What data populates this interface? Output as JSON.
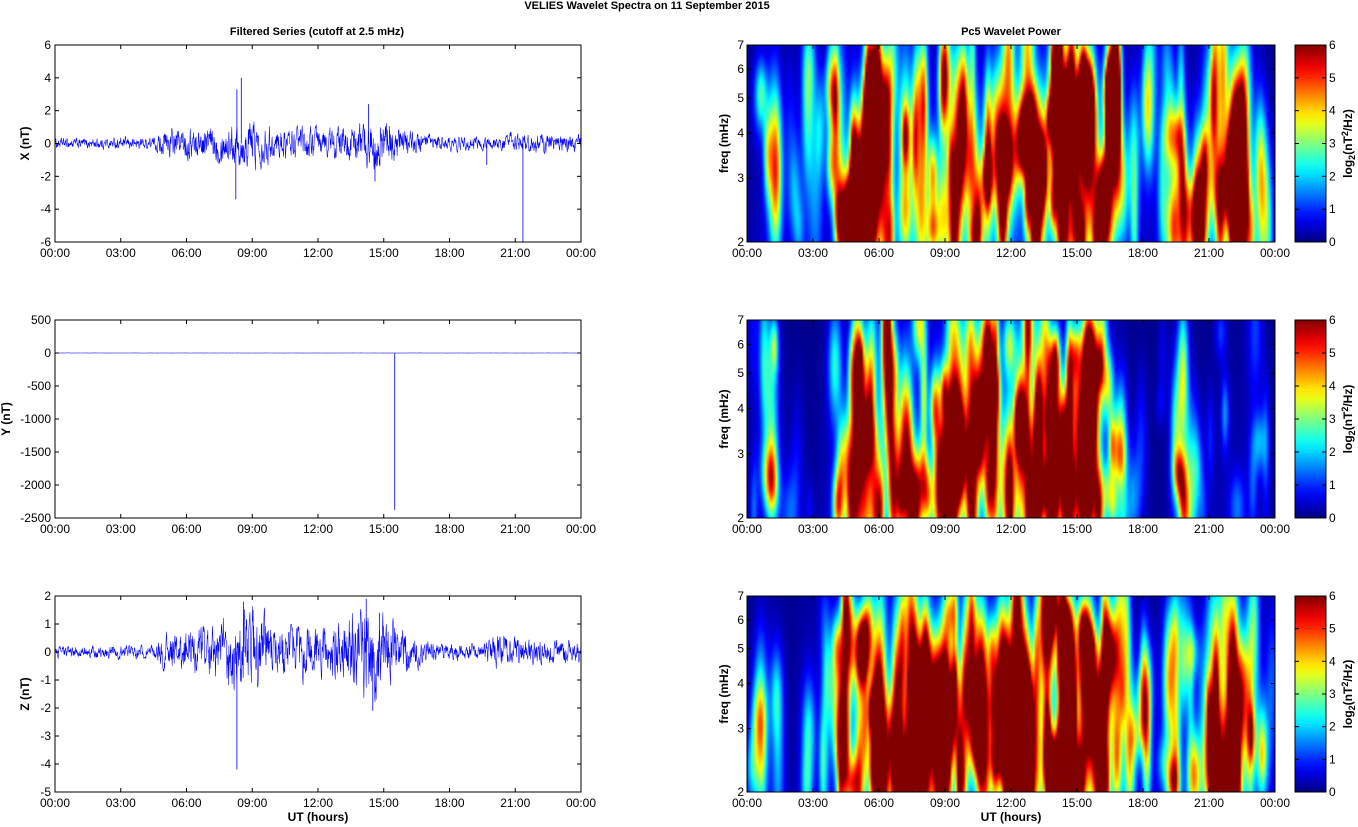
{
  "figure": {
    "suptitle": "VELIES Wavelet Spectra on 11 September 2015",
    "left_title": "Filtered Series (cutoff at 2.5 mHz)",
    "right_title": "Pc5 Wavelet Power",
    "xlabel": "UT (hours)"
  },
  "colors": {
    "series_line": "#0000ff",
    "axis": "#000000",
    "grid": "none",
    "colormap": "jet"
  },
  "chart_data": [
    {
      "type": "line",
      "xlabel": "",
      "ylabel": "X (nT)",
      "xlim": [
        0,
        24
      ],
      "ylim": [
        -6,
        6
      ],
      "yticks": [
        -6,
        -4,
        -2,
        0,
        2,
        4,
        6
      ],
      "xticks": [
        "00:00",
        "03:00",
        "06:00",
        "09:00",
        "12:00",
        "15:00",
        "18:00",
        "21:00",
        "00:00"
      ],
      "noise_envelope": [
        [
          0,
          0.25
        ],
        [
          4.5,
          0.3
        ],
        [
          5,
          0.7
        ],
        [
          8,
          0.9
        ],
        [
          9,
          1.2
        ],
        [
          10,
          0.7
        ],
        [
          13.5,
          0.8
        ],
        [
          14.5,
          1.3
        ],
        [
          16,
          0.7
        ],
        [
          17,
          0.4
        ],
        [
          20,
          0.3
        ],
        [
          21,
          0.5
        ],
        [
          24,
          0.4
        ]
      ],
      "spikes": [
        [
          8.25,
          -3.4
        ],
        [
          8.3,
          3.3
        ],
        [
          8.5,
          4.0
        ],
        [
          14.3,
          2.4
        ],
        [
          14.6,
          -2.3
        ],
        [
          19.7,
          -1.3
        ],
        [
          21.35,
          -6.0
        ]
      ]
    },
    {
      "type": "line",
      "xlabel": "",
      "ylabel": "Y (nT)",
      "xlim": [
        0,
        24
      ],
      "ylim": [
        -2500,
        500
      ],
      "yticks": [
        -2500,
        -2000,
        -1500,
        -1000,
        -500,
        0,
        500
      ],
      "xticks": [
        "00:00",
        "03:00",
        "06:00",
        "09:00",
        "12:00",
        "15:00",
        "18:00",
        "21:00",
        "00:00"
      ],
      "noise_envelope": [
        [
          0,
          1
        ],
        [
          24,
          1
        ]
      ],
      "spikes": [
        [
          15.5,
          -2380
        ]
      ]
    },
    {
      "type": "line",
      "xlabel": "UT (hours)",
      "ylabel": "Z (nT)",
      "xlim": [
        0,
        24
      ],
      "ylim": [
        -5,
        2
      ],
      "yticks": [
        -5,
        -4,
        -3,
        -2,
        -1,
        0,
        1,
        2
      ],
      "xticks": [
        "00:00",
        "03:00",
        "06:00",
        "09:00",
        "12:00",
        "15:00",
        "18:00",
        "21:00",
        "00:00"
      ],
      "noise_envelope": [
        [
          0,
          0.15
        ],
        [
          4.5,
          0.2
        ],
        [
          5,
          0.5
        ],
        [
          7,
          0.7
        ],
        [
          8,
          1.0
        ],
        [
          9,
          1.2
        ],
        [
          10,
          0.7
        ],
        [
          13,
          0.8
        ],
        [
          14.3,
          1.4
        ],
        [
          15,
          1.0
        ],
        [
          16,
          0.6
        ],
        [
          17,
          0.3
        ],
        [
          19.5,
          0.2
        ],
        [
          20,
          0.5
        ],
        [
          21,
          0.4
        ],
        [
          24,
          0.3
        ]
      ],
      "spikes": [
        [
          8.3,
          -4.2
        ],
        [
          8.6,
          1.8
        ],
        [
          14.2,
          1.9
        ],
        [
          14.5,
          -2.1
        ],
        [
          14.8,
          1.4
        ]
      ]
    },
    {
      "type": "heatmap",
      "xlabel": "",
      "ylabel": "freq (mHz)",
      "xlim": [
        0,
        24
      ],
      "ylim": [
        2,
        7
      ],
      "yscale": "log",
      "yticks": [
        2,
        3,
        4,
        5,
        6,
        7
      ],
      "xticks": [
        "00:00",
        "03:00",
        "06:00",
        "09:00",
        "12:00",
        "15:00",
        "18:00",
        "21:00",
        "00:00"
      ],
      "colorbar": {
        "label": "log2(nT2/Hz)",
        "range": [
          0,
          6
        ],
        "ticks": [
          0,
          1,
          2,
          3,
          4,
          5,
          6
        ]
      },
      "activity": [
        [
          0,
          0.25
        ],
        [
          1,
          0.6
        ],
        [
          2,
          0.2
        ],
        [
          2.7,
          0.55
        ],
        [
          3.5,
          0.35
        ],
        [
          4.5,
          0.7
        ],
        [
          5,
          0.9
        ],
        [
          7,
          0.85
        ],
        [
          8,
          1.0
        ],
        [
          9,
          1.0
        ],
        [
          10,
          0.8
        ],
        [
          11,
          0.85
        ],
        [
          12,
          0.8
        ],
        [
          13.5,
          1.0
        ],
        [
          14.5,
          0.95
        ],
        [
          15.5,
          0.9
        ],
        [
          16.5,
          0.85
        ],
        [
          17.5,
          0.5
        ],
        [
          18.5,
          0.45
        ],
        [
          19.5,
          0.6
        ],
        [
          21,
          0.6
        ],
        [
          22,
          0.75
        ],
        [
          23,
          0.8
        ],
        [
          24,
          0.3
        ]
      ]
    },
    {
      "type": "heatmap",
      "xlabel": "",
      "ylabel": "freq (mHz)",
      "xlim": [
        0,
        24
      ],
      "ylim": [
        2,
        7
      ],
      "yscale": "log",
      "yticks": [
        2,
        3,
        4,
        5,
        6,
        7
      ],
      "xticks": [
        "00:00",
        "03:00",
        "06:00",
        "09:00",
        "12:00",
        "15:00",
        "18:00",
        "21:00",
        "00:00"
      ],
      "colorbar": {
        "label": "log2(nT2/Hz)",
        "range": [
          0,
          6
        ],
        "ticks": [
          0,
          1,
          2,
          3,
          4,
          5,
          6
        ]
      },
      "activity": [
        [
          0,
          0.2
        ],
        [
          1.2,
          0.55
        ],
        [
          2,
          0.15
        ],
        [
          3,
          0.2
        ],
        [
          3.7,
          0.45
        ],
        [
          5,
          0.8
        ],
        [
          6.5,
          0.7
        ],
        [
          8,
          0.85
        ],
        [
          9,
          0.9
        ],
        [
          10,
          0.75
        ],
        [
          11,
          0.7
        ],
        [
          12.5,
          0.75
        ],
        [
          14.5,
          0.9
        ],
        [
          15.3,
          1.0
        ],
        [
          16.5,
          0.7
        ],
        [
          17.5,
          0.2
        ],
        [
          19,
          0.15
        ],
        [
          19.8,
          0.8
        ],
        [
          20.5,
          0.25
        ],
        [
          21.5,
          0.35
        ],
        [
          23,
          0.4
        ],
        [
          24,
          0.2
        ]
      ]
    },
    {
      "type": "heatmap",
      "xlabel": "UT (hours)",
      "ylabel": "freq (mHz)",
      "xlim": [
        0,
        24
      ],
      "ylim": [
        2,
        7
      ],
      "yscale": "log",
      "yticks": [
        2,
        3,
        4,
        5,
        6,
        7
      ],
      "xticks": [
        "00:00",
        "03:00",
        "06:00",
        "09:00",
        "12:00",
        "15:00",
        "18:00",
        "21:00",
        "00:00"
      ],
      "colorbar": {
        "label": "log2(nT2/Hz)",
        "range": [
          0,
          6
        ],
        "ticks": [
          0,
          1,
          2,
          3,
          4,
          5,
          6
        ]
      },
      "activity": [
        [
          0,
          0.3
        ],
        [
          1,
          0.6
        ],
        [
          2,
          0.25
        ],
        [
          2.7,
          0.55
        ],
        [
          3.5,
          0.35
        ],
        [
          4.5,
          0.7
        ],
        [
          5,
          0.9
        ],
        [
          7,
          0.85
        ],
        [
          8,
          1.0
        ],
        [
          9,
          1.0
        ],
        [
          10,
          0.8
        ],
        [
          11,
          0.85
        ],
        [
          12,
          0.8
        ],
        [
          13.5,
          1.0
        ],
        [
          14.5,
          0.95
        ],
        [
          15.5,
          0.9
        ],
        [
          16.5,
          0.85
        ],
        [
          17.5,
          0.5
        ],
        [
          18.5,
          0.45
        ],
        [
          19.5,
          0.6
        ],
        [
          21,
          0.6
        ],
        [
          22,
          0.75
        ],
        [
          23,
          0.8
        ],
        [
          24,
          0.3
        ]
      ]
    }
  ]
}
